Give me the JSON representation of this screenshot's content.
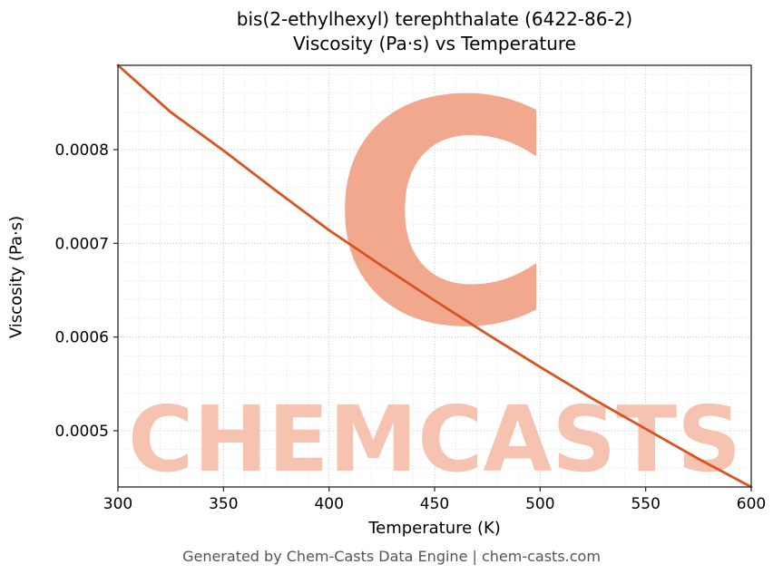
{
  "footer": {
    "text": "Generated by Chem-Casts Data Engine | chem-casts.com"
  },
  "watermark": {
    "text": "CHEMCASTS",
    "letter": "C",
    "text_color": "#f6c3b0",
    "letter_color": "#f1a88e"
  },
  "chart_data": {
    "type": "line",
    "title": "bis(2-ethylhexyl) terephthalate (6422-86-2)",
    "subtitle": "Viscosity (Pa·s) vs Temperature",
    "xlabel": "Temperature (K)",
    "ylabel": "Viscosity (Pa·s)",
    "xlim": [
      300,
      600
    ],
    "ylim": [
      0.00044,
      0.00089
    ],
    "xticks": [
      300,
      350,
      400,
      450,
      500,
      550,
      600
    ],
    "xtick_labels": [
      "300",
      "350",
      "400",
      "450",
      "500",
      "550",
      "600"
    ],
    "yticks": [
      0.0005,
      0.0006,
      0.0007,
      0.0008
    ],
    "ytick_labels": [
      "0.0005",
      "0.0006",
      "0.0007",
      "0.0008"
    ],
    "x_minor_step": 10,
    "y_minor_step": 2e-05,
    "grid": true,
    "legend": "none",
    "line_color": "#d9541f",
    "series": [
      {
        "name": "viscosity",
        "x": [
          300,
          325,
          350,
          375,
          400,
          425,
          450,
          475,
          500,
          525,
          550,
          575,
          600
        ],
        "y": [
          0.00089,
          0.00084,
          0.000799,
          0.000756,
          0.000714,
          0.000676,
          0.000639,
          0.000603,
          0.000568,
          0.000534,
          0.000502,
          0.00047,
          0.00044
        ]
      }
    ]
  }
}
